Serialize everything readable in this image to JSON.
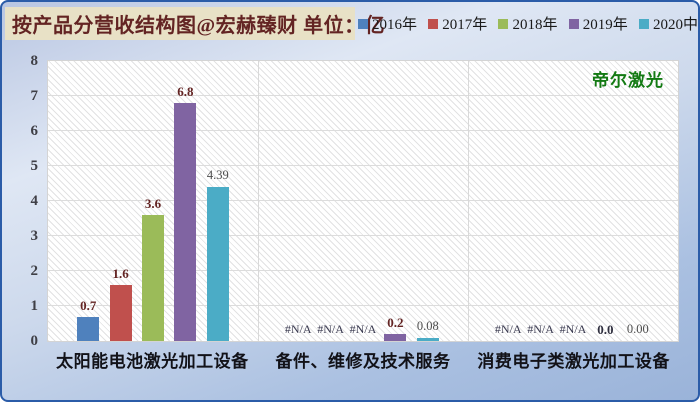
{
  "chart_data": {
    "type": "bar",
    "title": "按产品分营收结构图@宏赫臻财 单位：亿",
    "watermark": "帝尔激光",
    "categories": [
      "太阳能电池激光加工设备",
      "备件、维修及技术服务",
      "消费电子类激光加工设备"
    ],
    "ylim": [
      0,
      8
    ],
    "yticks": [
      0,
      1,
      2,
      3,
      4,
      5,
      6,
      7,
      8
    ],
    "grid": true,
    "legend_position": "top-right",
    "series": [
      {
        "name": "2016年",
        "color": "#4F81BD",
        "values": [
          0.7,
          null,
          null
        ],
        "labels": [
          {
            "t": "0.7",
            "s": "bm"
          },
          {
            "t": "#N/A",
            "s": "na"
          },
          {
            "t": "#N/A",
            "s": "na"
          }
        ]
      },
      {
        "name": "2017年",
        "color": "#C0504D",
        "values": [
          1.6,
          null,
          null
        ],
        "labels": [
          {
            "t": "1.6",
            "s": "bm"
          },
          {
            "t": "#N/A",
            "s": "na"
          },
          {
            "t": "#N/A",
            "s": "na"
          }
        ]
      },
      {
        "name": "2018年",
        "color": "#9BBB59",
        "values": [
          3.6,
          null,
          null
        ],
        "labels": [
          {
            "t": "3.6",
            "s": "bm"
          },
          {
            "t": "#N/A",
            "s": "na"
          },
          {
            "t": "#N/A",
            "s": "na"
          }
        ]
      },
      {
        "name": "2019年",
        "color": "#8064A2",
        "values": [
          6.8,
          0.2,
          0.0
        ],
        "labels": [
          {
            "t": "6.8",
            "s": "bm"
          },
          {
            "t": "0.2",
            "s": "bm"
          },
          {
            "t": "0.0",
            "s": "bd"
          }
        ]
      },
      {
        "name": "2020中",
        "color": "#4BACC6",
        "values": [
          4.39,
          0.08,
          0.0
        ],
        "labels": [
          {
            "t": "4.39",
            "s": "rg"
          },
          {
            "t": "0.08",
            "s": "rg"
          },
          {
            "t": "0.00",
            "s": "rg"
          }
        ]
      }
    ],
    "colors": {
      "frame_border": "#2b5ca8",
      "title_bg": "#e8e1c6",
      "title_text": "#632423",
      "watermark_green": "#137a13",
      "label_maroon": "#632423",
      "gridline": "#dcdcdc"
    }
  }
}
